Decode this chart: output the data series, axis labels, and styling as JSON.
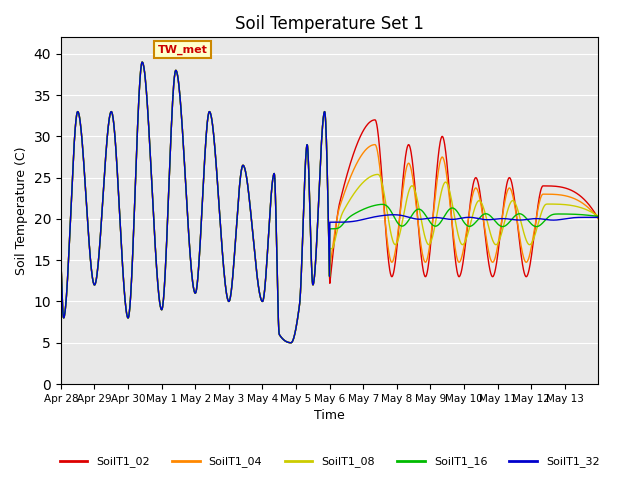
{
  "title": "Soil Temperature Set 1",
  "xlabel": "Time",
  "ylabel": "Soil Temperature (C)",
  "ylim": [
    0,
    42
  ],
  "yticks": [
    0,
    5,
    10,
    15,
    20,
    25,
    30,
    35,
    40
  ],
  "annotation_text": "TW_met",
  "bg_color": "#e8e8e8",
  "series_colors": {
    "SoilT1_02": "#dd0000",
    "SoilT1_04": "#ff8800",
    "SoilT1_08": "#cccc00",
    "SoilT1_16": "#00bb00",
    "SoilT1_32": "#0000cc"
  },
  "xtick_labels": [
    "Apr 28",
    "Apr 29",
    "Apr 30",
    "May 1",
    "May 2",
    "May 3",
    "May 4",
    "May 5",
    "May 6",
    "May 7",
    "May 8",
    "May 9",
    "May 10",
    "May 11",
    "May 12",
    "May 13"
  ],
  "num_days": 16,
  "peaks": [
    33,
    33,
    39,
    38,
    33,
    26,
    25,
    29,
    33,
    22,
    31,
    29,
    30,
    25,
    25,
    24
  ],
  "troughs": [
    8,
    12,
    8,
    9,
    11,
    10,
    6,
    9,
    12,
    13,
    13,
    13,
    13,
    13,
    13,
    13
  ],
  "peak_times": [
    0.5,
    1.5,
    2.4,
    3.4,
    4.4,
    5.4,
    6.4,
    7.35,
    8.35,
    9.0,
    9.35,
    10.35,
    11.35,
    12.35,
    13.35,
    14.35
  ],
  "trough_times": [
    0.1,
    1.0,
    2.0,
    3.0,
    4.0,
    5.0,
    6.0,
    7.0,
    7.85,
    8.3,
    9.85,
    10.85,
    11.85,
    12.85,
    13.85,
    14.85
  ]
}
